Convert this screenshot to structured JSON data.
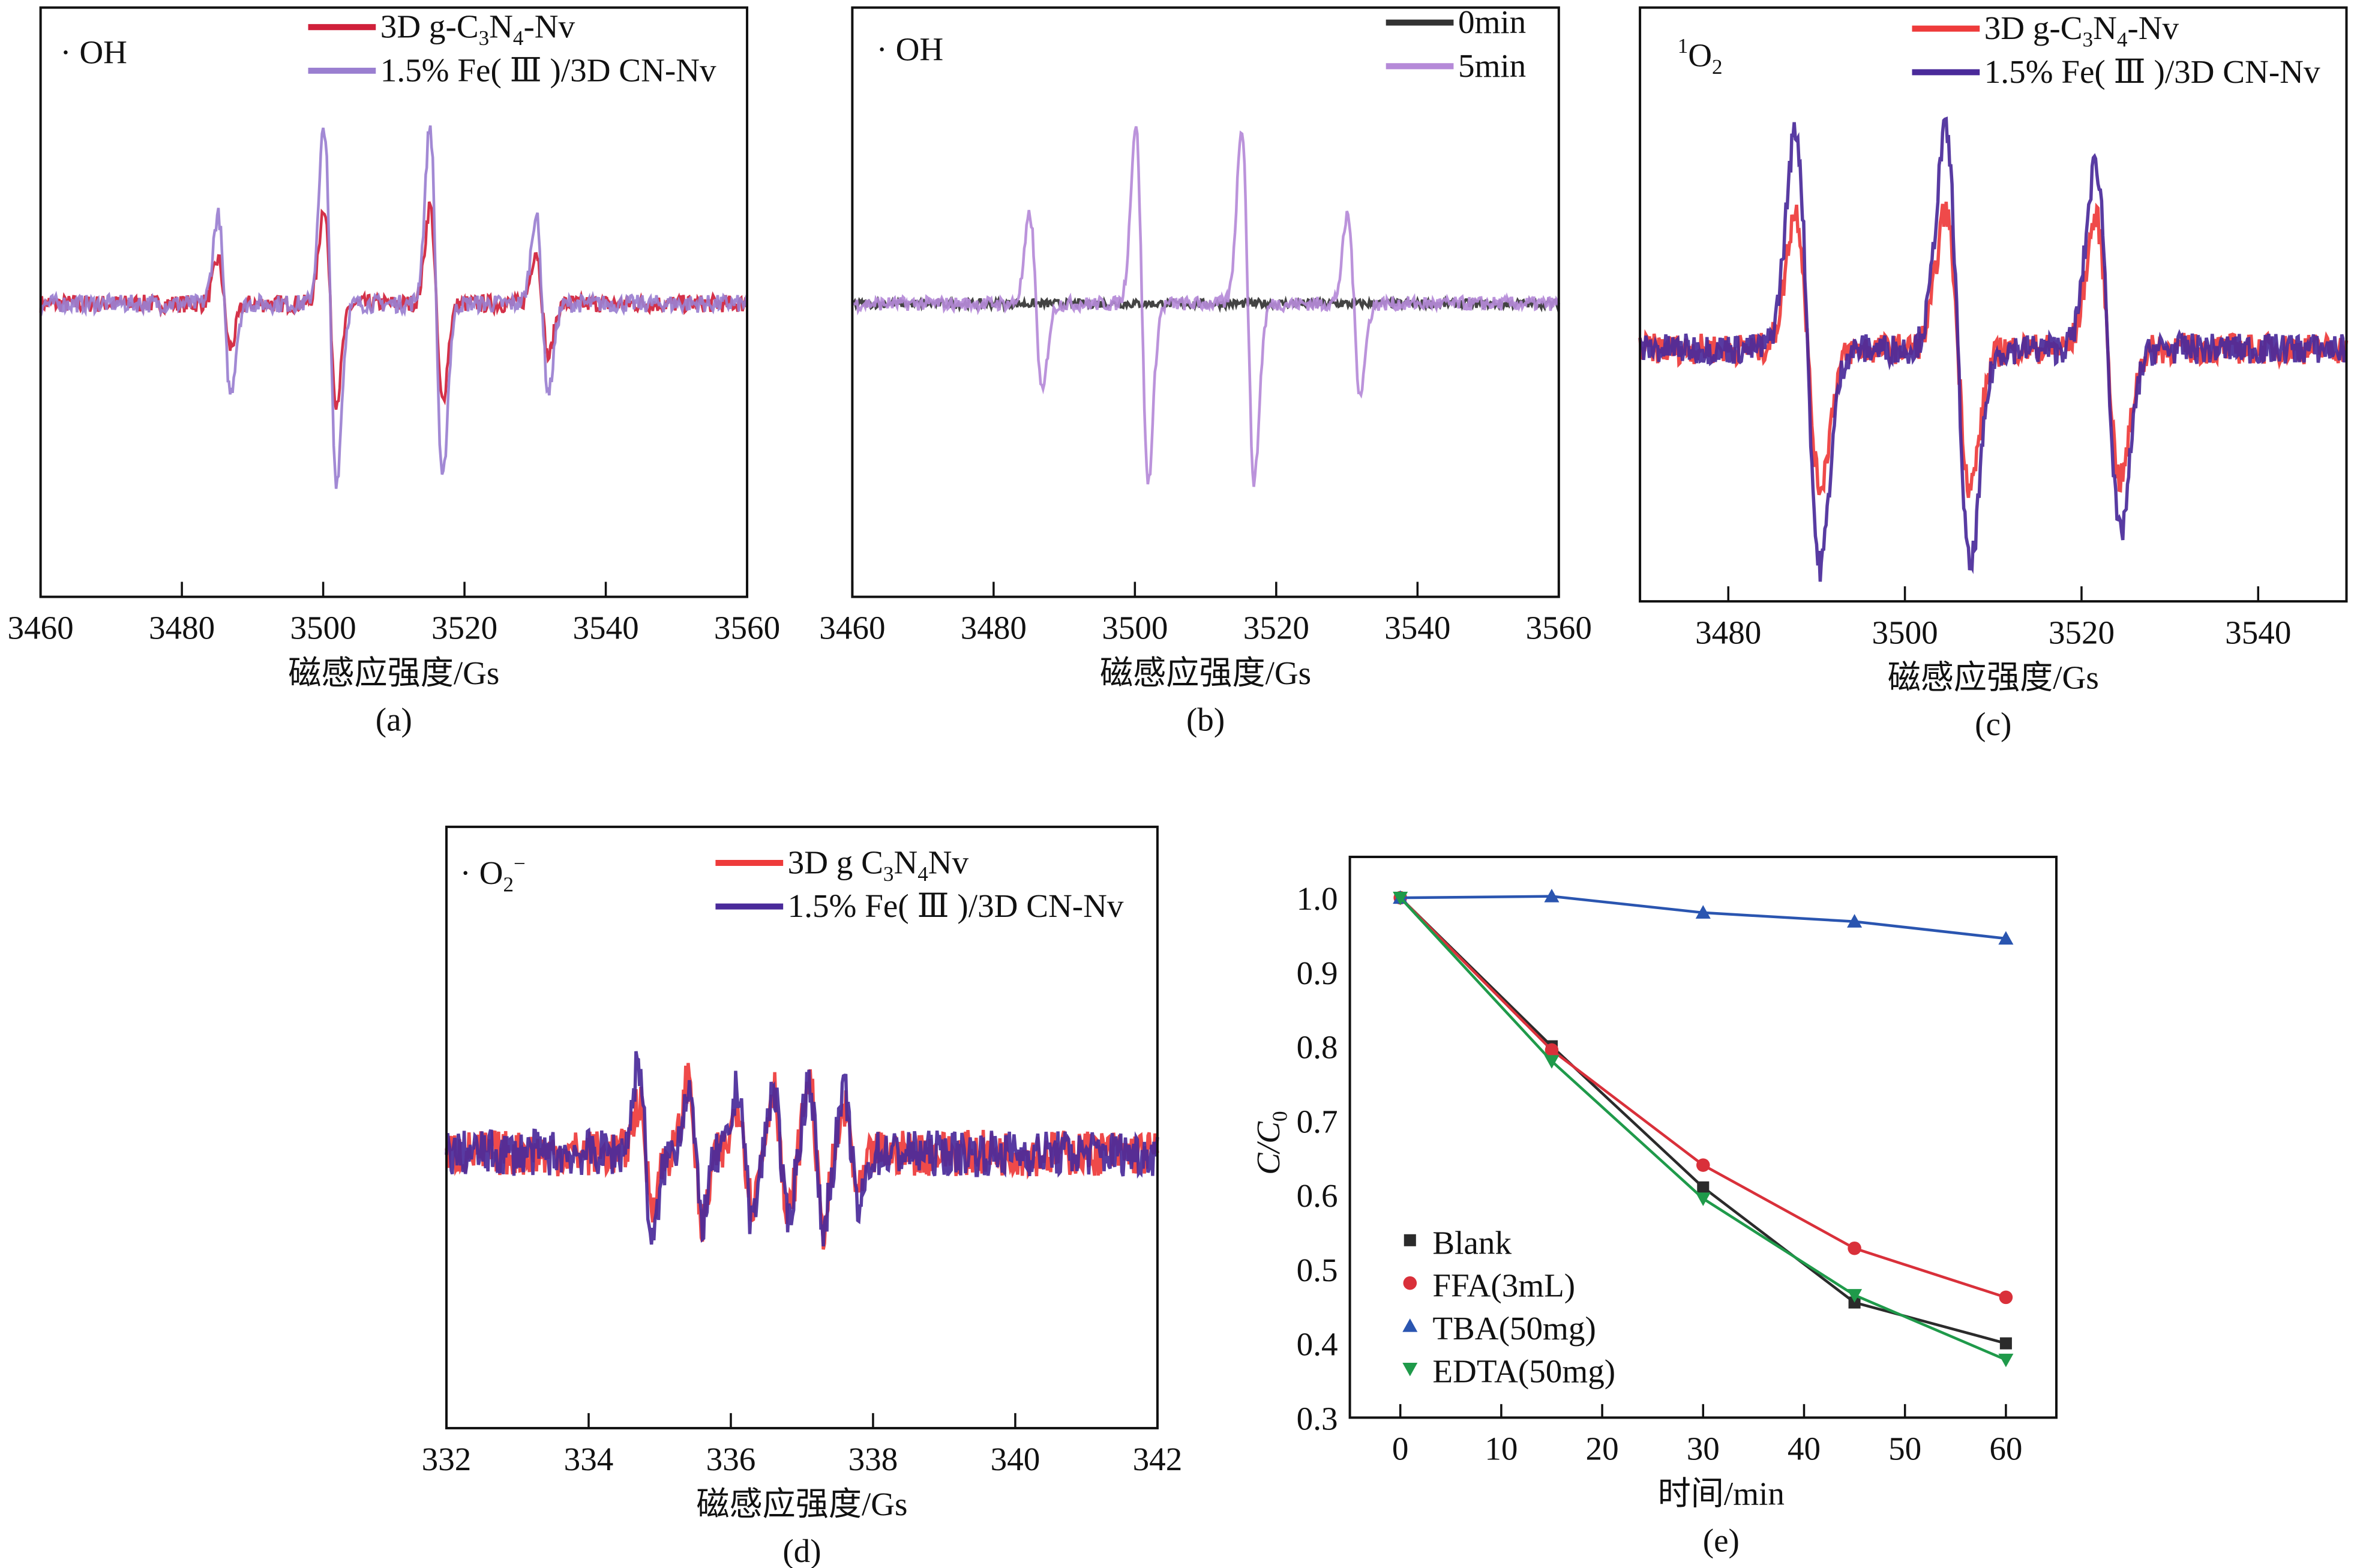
{
  "chart_data": [
    {
      "id": "a",
      "type": "line",
      "panel_label": "(a)",
      "species_label": [
        {
          "t": "· OH"
        }
      ],
      "xlabel": "磁感应强度/Gs",
      "xlim": [
        3460,
        3560
      ],
      "xticks": [
        3460,
        3480,
        3500,
        3520,
        3540,
        3560
      ],
      "yticks": [],
      "legend_position": "top-right",
      "peaks_gs": [
        3486,
        3501,
        3516,
        3531
      ],
      "linewidth_gs": 0.9,
      "series": [
        {
          "name": [
            {
              "t": "3D g-C"
            },
            {
              "t": "3",
              "sub": true
            },
            {
              "t": "N"
            },
            {
              "t": "4",
              "sub": true
            },
            {
              "t": "-Nv"
            }
          ],
          "color": "#d0203a",
          "relative_amplitudes": [
            0.25,
            0.55,
            0.55,
            0.3
          ]
        },
        {
          "name": [
            {
              "t": "1.5% Fe( Ⅲ )/3D CN-Nv"
            }
          ],
          "color": "#9a7fd0",
          "relative_amplitudes": [
            0.5,
            1.0,
            1.0,
            0.5
          ]
        }
      ]
    },
    {
      "id": "b",
      "type": "line",
      "panel_label": "(b)",
      "species_label": [
        {
          "t": "· OH"
        }
      ],
      "xlabel": "磁感应强度/Gs",
      "xlim": [
        3460,
        3560
      ],
      "xticks": [
        3460,
        3480,
        3500,
        3520,
        3540,
        3560
      ],
      "yticks": [],
      "legend_position": "top-right",
      "peaks_gs": [
        3486,
        3501,
        3516,
        3531
      ],
      "linewidth_gs": 0.9,
      "series": [
        {
          "name": [
            {
              "t": "0min"
            }
          ],
          "color": "#333333",
          "relative_amplitudes": [
            0,
            0,
            0,
            0
          ]
        },
        {
          "name": [
            {
              "t": "5min"
            }
          ],
          "color": "#b58ad8",
          "relative_amplitudes": [
            0.5,
            1.0,
            1.0,
            0.5
          ]
        }
      ]
    },
    {
      "id": "c",
      "type": "line",
      "panel_label": "(c)",
      "species_label": [
        {
          "t": "1",
          "sup": true
        },
        {
          "t": "O"
        },
        {
          "t": "2",
          "sub": true
        }
      ],
      "xlabel": "磁感应强度/Gs",
      "xlim": [
        3470,
        3550
      ],
      "xticks": [
        3480,
        3500,
        3520,
        3540
      ],
      "yticks": [],
      "legend_position": "top-right",
      "peaks_gs": [
        3489,
        3506,
        3523
      ],
      "linewidth_gs": 1.4,
      "series": [
        {
          "name": [
            {
              "t": "3D g-C"
            },
            {
              "t": "3",
              "sub": true
            },
            {
              "t": "N"
            },
            {
              "t": "4",
              "sub": true
            },
            {
              "t": "-Nv"
            }
          ],
          "color": "#ee3b3b",
          "relative_amplitudes": [
            0.63,
            0.63,
            0.6
          ]
        },
        {
          "name": [
            {
              "t": "1.5% Fe( Ⅲ )/3D CN-Nv"
            }
          ],
          "color": "#4a2a9a",
          "relative_amplitudes": [
            1.0,
            1.0,
            0.85
          ]
        }
      ]
    },
    {
      "id": "d",
      "type": "line",
      "panel_label": "(d)",
      "species_label": [
        {
          "t": "· O"
        },
        {
          "t": "2",
          "sub": true
        },
        {
          "t": "−",
          "sup": true
        }
      ],
      "xlabel": "磁感应强度/Gs",
      "xlim": [
        332,
        342
      ],
      "xticks": [
        332,
        334,
        336,
        338,
        340,
        342
      ],
      "yticks": [],
      "legend_position": "top-right",
      "peaks_gs": [
        334.8,
        335.5,
        336.2,
        336.7,
        337.2,
        337.7
      ],
      "linewidth_gs": 0.1,
      "series": [
        {
          "name": [
            {
              "t": "3D g C"
            },
            {
              "t": "3",
              "sub": true
            },
            {
              "t": "N"
            },
            {
              "t": "4",
              "sub": true
            },
            {
              "t": "Nv"
            }
          ],
          "color": "#ee3b3b",
          "relative_amplitudes": [
            0.3,
            0.45,
            0.3,
            0.4,
            0.45,
            0.25
          ]
        },
        {
          "name": [
            {
              "t": "1.5% Fe( Ⅲ )/3D CN-Nv"
            }
          ],
          "color": "#4a2a9a",
          "relative_amplitudes": [
            0.55,
            0.4,
            0.4,
            0.4,
            0.45,
            0.35
          ]
        }
      ]
    },
    {
      "id": "e",
      "type": "line",
      "panel_label": "(e)",
      "xlabel": "时间/min",
      "ylabel": [
        {
          "t": "C/C",
          "i": true
        },
        {
          "t": "0",
          "sub": true
        }
      ],
      "xlim": [
        -5,
        65
      ],
      "ylim": [
        0.3,
        1.055
      ],
      "xticks": [
        0,
        10,
        20,
        30,
        40,
        50,
        60
      ],
      "yticks": [
        0.3,
        0.4,
        0.5,
        0.6,
        0.7,
        0.8,
        0.9,
        1.0
      ],
      "ytick_labels": [
        "0.3",
        "0.4",
        "0.5",
        "0.6",
        "0.7",
        "0.8",
        "0.9",
        "1.0"
      ],
      "legend_position": "bottom-left",
      "x": [
        0,
        15,
        30,
        45,
        60
      ],
      "series": [
        {
          "name": "Blank",
          "color": "#2b2b2b",
          "marker": "square",
          "values": [
            1.0,
            0.8,
            0.61,
            0.455,
            0.4
          ]
        },
        {
          "name": "FFA(3mL)",
          "color": "#d9303a",
          "marker": "circle",
          "values": [
            1.0,
            0.795,
            0.64,
            0.528,
            0.462
          ]
        },
        {
          "name": "TBA(50mg)",
          "color": "#2a55b0",
          "marker": "triangle-up",
          "values": [
            1.0,
            1.002,
            0.98,
            0.968,
            0.945
          ]
        },
        {
          "name": "EDTA(50mg)",
          "color": "#1f9a4a",
          "marker": "triangle-down",
          "values": [
            1.0,
            0.78,
            0.595,
            0.465,
            0.378
          ]
        }
      ]
    }
  ]
}
